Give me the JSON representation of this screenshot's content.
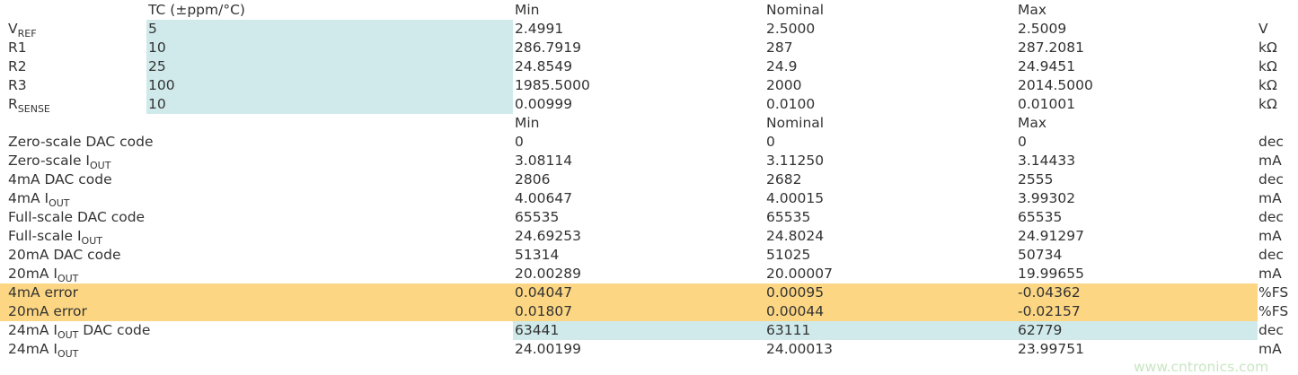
{
  "header1": {
    "tc": "TC (±ppm/°C)",
    "min": "Min",
    "nominal": "Nominal",
    "max": "Max"
  },
  "components": [
    {
      "label": "V",
      "sub": "REF",
      "tc": "5",
      "min": "2.4991",
      "nominal": "2.5000",
      "max": "2.5009",
      "unit": "V"
    },
    {
      "label": "R1",
      "sub": "",
      "tc": "10",
      "min": "286.7919",
      "nominal": "287",
      "max": "287.2081",
      "unit": "kΩ"
    },
    {
      "label": "R2",
      "sub": "",
      "tc": "25",
      "min": "24.8549",
      "nominal": "24.9",
      "max": "24.9451",
      "unit": "kΩ"
    },
    {
      "label": "R3",
      "sub": "",
      "tc": "100",
      "min": "1985.5000",
      "nominal": "2000",
      "max": "2014.5000",
      "unit": "kΩ"
    },
    {
      "label": "R",
      "sub": "SENSE",
      "tc": "10",
      "min": "0.00999",
      "nominal": "0.0100",
      "max": "0.01001",
      "unit": "kΩ"
    }
  ],
  "header2": {
    "min": "Min",
    "nominal": "Nominal",
    "max": "Max"
  },
  "results": [
    {
      "label": "Zero-scale DAC code",
      "sub": "",
      "post": "",
      "min": "0",
      "nominal": "0",
      "max": "0",
      "unit": "dec",
      "hl": ""
    },
    {
      "label": "Zero-scale I",
      "sub": "OUT",
      "post": "",
      "min": "3.08114",
      "nominal": "3.11250",
      "max": "3.14433",
      "unit": "mA",
      "hl": ""
    },
    {
      "label": "4mA DAC code",
      "sub": "",
      "post": "",
      "min": "2806",
      "nominal": "2682",
      "max": "2555",
      "unit": "dec",
      "hl": ""
    },
    {
      "label": "4mA I",
      "sub": "OUT",
      "post": "",
      "min": "4.00647",
      "nominal": "4.00015",
      "max": "3.99302",
      "unit": "mA",
      "hl": ""
    },
    {
      "label": "Full-scale DAC code",
      "sub": "",
      "post": "",
      "min": "65535",
      "nominal": "65535",
      "max": "65535",
      "unit": "dec",
      "hl": ""
    },
    {
      "label": "Full-scale I",
      "sub": "OUT",
      "post": "",
      "min": "24.69253",
      "nominal": "24.8024",
      "max": "24.91297",
      "unit": "mA",
      "hl": ""
    },
    {
      "label": "20mA DAC code",
      "sub": "",
      "post": "",
      "min": "51314",
      "nominal": "51025",
      "max": "50734",
      "unit": "dec",
      "hl": ""
    },
    {
      "label": "20mA I",
      "sub": "OUT",
      "post": "",
      "min": "20.00289",
      "nominal": "20.00007",
      "max": "19.99655",
      "unit": "mA",
      "hl": ""
    },
    {
      "label": "4mA error",
      "sub": "",
      "post": "",
      "min": "0.04047",
      "nominal": "0.00095",
      "max": "-0.04362",
      "unit": "%FS",
      "hl": "orange"
    },
    {
      "label": "20mA error",
      "sub": "",
      "post": "",
      "min": "0.01807",
      "nominal": "0.00044",
      "max": "-0.02157",
      "unit": "%FS",
      "hl": "orange"
    },
    {
      "label": "24mA I",
      "sub": "OUT",
      "post": " DAC code",
      "min": "63441",
      "nominal": "63111",
      "max": "62779",
      "unit": "dec",
      "hl": "teal"
    },
    {
      "label": "24mA I",
      "sub": "OUT",
      "post": "",
      "min": "24.00199",
      "nominal": "24.00013",
      "max": "23.99751",
      "unit": "mA",
      "hl": ""
    }
  ],
  "colors": {
    "input_highlight": "#d0eaeb",
    "error_highlight": "#fcd682"
  },
  "watermark": "www.cntronics.com"
}
